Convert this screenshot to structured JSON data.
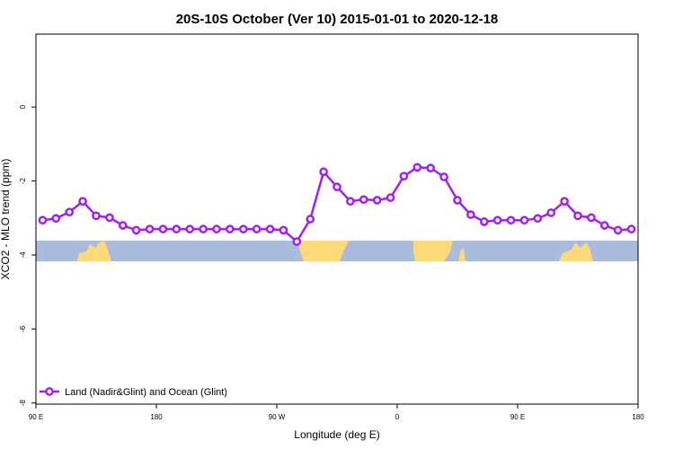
{
  "chart_data": {
    "type": "line",
    "title": "20S-10S October (Ver 10)   2015-01-01 to 2020-12-18",
    "x_label": "Longitude (deg E)",
    "y_label": "XCO2 - MLO trend (ppm)",
    "xlim": [
      90,
      540
    ],
    "ylim": [
      -8.03,
      1.97
    ],
    "xticks": [
      {
        "value": 90,
        "label": "90 E"
      },
      180,
      {
        "value": 270,
        "label": "90 W"
      },
      {
        "value": 360,
        "label": "0"
      },
      {
        "value": 450,
        "label": "90 E"
      },
      {
        "value": 540,
        "label": "180"
      }
    ],
    "yticks": [
      0,
      -2,
      -4,
      -6,
      -8
    ],
    "legend": "bottom-left",
    "series": [
      {
        "name": "Land (Nadir&Glint) and Ocean (Glint)",
        "color": "#a020f0",
        "x": [
          95,
          105,
          115,
          125,
          135,
          145,
          155,
          165,
          175,
          185,
          195,
          205,
          215,
          225,
          235,
          245,
          255,
          265,
          275,
          285,
          295,
          305,
          315,
          325,
          335,
          345,
          355,
          365,
          375,
          385,
          395,
          405,
          415,
          425,
          435,
          445,
          455,
          465,
          475,
          485,
          495,
          505,
          515,
          525,
          535
        ],
        "values": [
          -3.06,
          -3.01,
          -2.84,
          -2.55,
          -2.94,
          -2.99,
          -3.2,
          -3.33,
          -3.3,
          -3.3,
          -3.3,
          -3.3,
          -3.3,
          -3.3,
          -3.3,
          -3.3,
          -3.3,
          -3.3,
          -3.33,
          -3.64,
          -3.03,
          -1.75,
          -2.16,
          -2.55,
          -2.5,
          -2.52,
          -2.45,
          -1.87,
          -1.63,
          -1.65,
          -1.89,
          -2.52,
          -2.91,
          -3.1,
          -3.06,
          -3.06,
          -3.06,
          -3.01,
          -2.86,
          -2.55,
          -2.94,
          -2.99,
          -3.2,
          -3.33,
          -3.3
        ]
      }
    ]
  }
}
